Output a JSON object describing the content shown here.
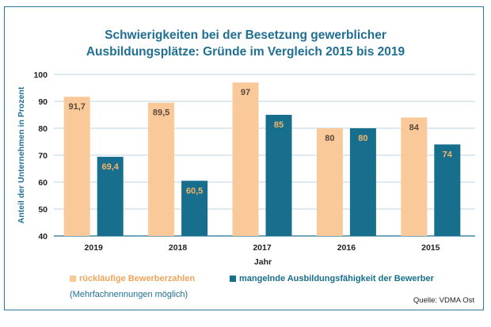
{
  "title_lines": [
    "Schwierigkeiten bei der Besetzung gewerblicher",
    "Ausbildungsplätze: Gründe im Vergleich 2015 bis 2019"
  ],
  "legend": [
    {
      "label": "rückläufige Bewerberzahlen",
      "color": "#f9c99a",
      "text_color": "#f0a55c"
    },
    {
      "label": "mangelnde Ausbildungsfähigkeit der Bewerber",
      "color": "#176f8d",
      "text_color": "#176f8d"
    }
  ],
  "note": "(Mehrfachnennungen möglich)",
  "source": "Quelle: VDMA Ost",
  "chart_data": {
    "type": "bar",
    "title": "Schwierigkeiten bei der Besetzung gewerblicher Ausbildungsplätze: Gründe im Vergleich 2015 bis 2019",
    "xlabel": "Jahr",
    "ylabel": "Anteil der Unternehmen in Prozent",
    "categories": [
      "2019",
      "2018",
      "2017",
      "2016",
      "2015"
    ],
    "series": [
      {
        "name": "rückläufige Bewerberzahlen",
        "color": "#f9c99a",
        "label_color": "#5a4a3a",
        "values": [
          91.7,
          89.5,
          97,
          80,
          84
        ],
        "labels": [
          "91,7",
          "89,5",
          "97",
          "80",
          "84"
        ]
      },
      {
        "name": "mangelnde Ausbildungsfähigkeit der Bewerber",
        "color": "#176f8d",
        "label_color": "#f4b46a",
        "values": [
          69.4,
          60.5,
          85,
          80,
          74
        ],
        "labels": [
          "69,4",
          "60,5",
          "85",
          "80",
          "74"
        ]
      }
    ],
    "ylim": [
      40,
      100
    ],
    "yticks": [
      40,
      50,
      60,
      70,
      80,
      90,
      100
    ],
    "grid": true,
    "axis_color": "#1f6f93",
    "grid_color": "#bcd6e3"
  }
}
